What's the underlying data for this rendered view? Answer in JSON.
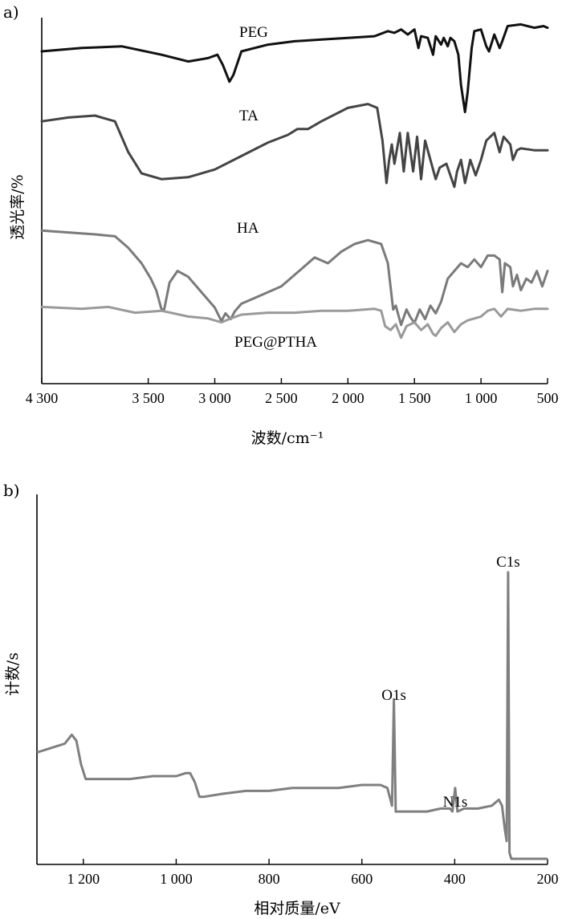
{
  "chart_data": [
    {
      "panel": "a)",
      "type": "line",
      "xlabel": "波数/cm⁻¹",
      "ylabel": "透光率/%",
      "xlim": [
        4300,
        500
      ],
      "x_reversed": true,
      "xticks": [
        4300,
        3500,
        3000,
        2500,
        2000,
        1500,
        1000,
        500
      ],
      "xtick_labels": [
        "4 300",
        "3 500",
        "3 000",
        "2 500",
        "2 000",
        "1 500",
        "1 000",
        "500"
      ],
      "grid": false,
      "series": [
        {
          "name": "PEG",
          "color": "#111111",
          "points": [
            [
              4300,
              0.8
            ],
            [
              4000,
              0.82
            ],
            [
              3700,
              0.83
            ],
            [
              3400,
              0.78
            ],
            [
              3200,
              0.74
            ],
            [
              3050,
              0.76
            ],
            [
              2980,
              0.78
            ],
            [
              2940,
              0.72
            ],
            [
              2890,
              0.62
            ],
            [
              2860,
              0.66
            ],
            [
              2800,
              0.8
            ],
            [
              2600,
              0.84
            ],
            [
              2400,
              0.86
            ],
            [
              2200,
              0.87
            ],
            [
              2000,
              0.88
            ],
            [
              1800,
              0.89
            ],
            [
              1700,
              0.92
            ],
            [
              1650,
              0.91
            ],
            [
              1600,
              0.93
            ],
            [
              1550,
              0.9
            ],
            [
              1500,
              0.93
            ],
            [
              1470,
              0.82
            ],
            [
              1450,
              0.89
            ],
            [
              1400,
              0.88
            ],
            [
              1360,
              0.78
            ],
            [
              1340,
              0.89
            ],
            [
              1300,
              0.84
            ],
            [
              1280,
              0.88
            ],
            [
              1250,
              0.83
            ],
            [
              1230,
              0.88
            ],
            [
              1200,
              0.86
            ],
            [
              1170,
              0.78
            ],
            [
              1150,
              0.6
            ],
            [
              1120,
              0.44
            ],
            [
              1100,
              0.56
            ],
            [
              1070,
              0.82
            ],
            [
              1050,
              0.92
            ],
            [
              1000,
              0.93
            ],
            [
              960,
              0.83
            ],
            [
              940,
              0.8
            ],
            [
              900,
              0.9
            ],
            [
              860,
              0.82
            ],
            [
              840,
              0.86
            ],
            [
              800,
              0.95
            ],
            [
              700,
              0.96
            ],
            [
              600,
              0.94
            ],
            [
              530,
              0.95
            ],
            [
              500,
              0.94
            ]
          ]
        },
        {
          "name": "TA",
          "color": "#444444",
          "points": [
            [
              4300,
              0.62
            ],
            [
              4100,
              0.64
            ],
            [
              3900,
              0.65
            ],
            [
              3750,
              0.62
            ],
            [
              3650,
              0.46
            ],
            [
              3550,
              0.35
            ],
            [
              3400,
              0.32
            ],
            [
              3200,
              0.33
            ],
            [
              3000,
              0.37
            ],
            [
              2800,
              0.44
            ],
            [
              2600,
              0.51
            ],
            [
              2450,
              0.55
            ],
            [
              2380,
              0.58
            ],
            [
              2300,
              0.58
            ],
            [
              2200,
              0.62
            ],
            [
              2000,
              0.69
            ],
            [
              1850,
              0.71
            ],
            [
              1780,
              0.69
            ],
            [
              1740,
              0.52
            ],
            [
              1710,
              0.3
            ],
            [
              1690,
              0.42
            ],
            [
              1670,
              0.5
            ],
            [
              1650,
              0.4
            ],
            [
              1610,
              0.56
            ],
            [
              1580,
              0.36
            ],
            [
              1550,
              0.56
            ],
            [
              1510,
              0.36
            ],
            [
              1480,
              0.54
            ],
            [
              1450,
              0.32
            ],
            [
              1420,
              0.52
            ],
            [
              1380,
              0.42
            ],
            [
              1340,
              0.32
            ],
            [
              1310,
              0.38
            ],
            [
              1260,
              0.4
            ],
            [
              1200,
              0.28
            ],
            [
              1180,
              0.36
            ],
            [
              1150,
              0.42
            ],
            [
              1120,
              0.3
            ],
            [
              1080,
              0.42
            ],
            [
              1040,
              0.34
            ],
            [
              1000,
              0.42
            ],
            [
              960,
              0.52
            ],
            [
              900,
              0.56
            ],
            [
              860,
              0.46
            ],
            [
              830,
              0.54
            ],
            [
              780,
              0.5
            ],
            [
              760,
              0.42
            ],
            [
              730,
              0.47
            ],
            [
              700,
              0.48
            ],
            [
              600,
              0.47
            ],
            [
              500,
              0.47
            ]
          ]
        },
        {
          "name": "HA",
          "color": "#7a7a7a",
          "points": [
            [
              4300,
              0.47
            ],
            [
              4100,
              0.46
            ],
            [
              3900,
              0.45
            ],
            [
              3750,
              0.44
            ],
            [
              3650,
              0.38
            ],
            [
              3550,
              0.3
            ],
            [
              3480,
              0.22
            ],
            [
              3440,
              0.16
            ],
            [
              3400,
              0.06
            ],
            [
              3380,
              0.06
            ],
            [
              3340,
              0.2
            ],
            [
              3280,
              0.26
            ],
            [
              3200,
              0.23
            ],
            [
              3100,
              0.15
            ],
            [
              3000,
              0.07
            ],
            [
              2950,
              0.0
            ],
            [
              2920,
              0.04
            ],
            [
              2880,
              0.01
            ],
            [
              2850,
              0.05
            ],
            [
              2800,
              0.09
            ],
            [
              2700,
              0.12
            ],
            [
              2500,
              0.18
            ],
            [
              2350,
              0.27
            ],
            [
              2250,
              0.33
            ],
            [
              2150,
              0.3
            ],
            [
              2050,
              0.36
            ],
            [
              1950,
              0.4
            ],
            [
              1850,
              0.42
            ],
            [
              1750,
              0.4
            ],
            [
              1700,
              0.3
            ],
            [
              1660,
              0.06
            ],
            [
              1640,
              0.08
            ],
            [
              1600,
              -0.02
            ],
            [
              1560,
              0.06
            ],
            [
              1530,
              0.02
            ],
            [
              1500,
              -0.01
            ],
            [
              1460,
              0.06
            ],
            [
              1420,
              0.01
            ],
            [
              1380,
              0.08
            ],
            [
              1340,
              0.04
            ],
            [
              1300,
              0.1
            ],
            [
              1250,
              0.22
            ],
            [
              1200,
              0.26
            ],
            [
              1150,
              0.3
            ],
            [
              1100,
              0.28
            ],
            [
              1050,
              0.32
            ],
            [
              1000,
              0.28
            ],
            [
              950,
              0.34
            ],
            [
              900,
              0.34
            ],
            [
              860,
              0.32
            ],
            [
              840,
              0.15
            ],
            [
              820,
              0.3
            ],
            [
              780,
              0.28
            ],
            [
              760,
              0.18
            ],
            [
              730,
              0.24
            ],
            [
              700,
              0.16
            ],
            [
              660,
              0.22
            ],
            [
              620,
              0.2
            ],
            [
              580,
              0.26
            ],
            [
              540,
              0.18
            ],
            [
              500,
              0.26
            ]
          ]
        },
        {
          "name": "PEG@PTHA",
          "color": "#9a9a9a",
          "points": [
            [
              4300,
              0.04
            ],
            [
              4000,
              0.03
            ],
            [
              3800,
              0.04
            ],
            [
              3600,
              0.01
            ],
            [
              3400,
              0.02
            ],
            [
              3200,
              -0.01
            ],
            [
              3050,
              -0.02
            ],
            [
              2950,
              -0.04
            ],
            [
              2880,
              -0.02
            ],
            [
              2800,
              0.0
            ],
            [
              2600,
              0.01
            ],
            [
              2400,
              0.01
            ],
            [
              2200,
              0.02
            ],
            [
              2000,
              0.02
            ],
            [
              1800,
              0.03
            ],
            [
              1750,
              0.02
            ],
            [
              1720,
              -0.06
            ],
            [
              1680,
              -0.08
            ],
            [
              1640,
              -0.05
            ],
            [
              1600,
              -0.12
            ],
            [
              1560,
              -0.06
            ],
            [
              1500,
              -0.04
            ],
            [
              1450,
              -0.08
            ],
            [
              1400,
              -0.05
            ],
            [
              1360,
              -0.1
            ],
            [
              1340,
              -0.11
            ],
            [
              1300,
              -0.07
            ],
            [
              1250,
              -0.04
            ],
            [
              1200,
              -0.09
            ],
            [
              1150,
              -0.05
            ],
            [
              1100,
              -0.03
            ],
            [
              1000,
              -0.01
            ],
            [
              950,
              0.02
            ],
            [
              900,
              0.03
            ],
            [
              850,
              -0.01
            ],
            [
              800,
              0.03
            ],
            [
              700,
              0.02
            ],
            [
              600,
              0.03
            ],
            [
              500,
              0.03
            ]
          ]
        }
      ]
    },
    {
      "panel": "b)",
      "type": "line",
      "xlabel": "相对质量/eV",
      "ylabel": "计数/s",
      "xlim": [
        1300,
        200
      ],
      "x_reversed": true,
      "xticks": [
        1200,
        1000,
        800,
        600,
        400,
        200
      ],
      "xtick_labels": [
        "1 200",
        "1 000",
        "800",
        "600",
        "400",
        "200"
      ],
      "grid": false,
      "annotations": [
        {
          "text": "C1s",
          "x": 285
        },
        {
          "text": "O1s",
          "x": 531
        },
        {
          "text": "N1s",
          "x": 399
        }
      ],
      "series": [
        {
          "name": "",
          "color": "#7f7f7f",
          "points": [
            [
              1300,
              0.36
            ],
            [
              1280,
              0.37
            ],
            [
              1260,
              0.38
            ],
            [
              1240,
              0.39
            ],
            [
              1225,
              0.42
            ],
            [
              1215,
              0.4
            ],
            [
              1205,
              0.32
            ],
            [
              1195,
              0.27
            ],
            [
              1150,
              0.27
            ],
            [
              1100,
              0.27
            ],
            [
              1050,
              0.28
            ],
            [
              1000,
              0.28
            ],
            [
              980,
              0.29
            ],
            [
              970,
              0.29
            ],
            [
              960,
              0.26
            ],
            [
              950,
              0.21
            ],
            [
              940,
              0.21
            ],
            [
              900,
              0.22
            ],
            [
              850,
              0.23
            ],
            [
              800,
              0.23
            ],
            [
              750,
              0.24
            ],
            [
              700,
              0.24
            ],
            [
              650,
              0.24
            ],
            [
              600,
              0.25
            ],
            [
              560,
              0.25
            ],
            [
              545,
              0.24
            ],
            [
              535,
              0.18
            ],
            [
              531,
              0.54
            ],
            [
              527,
              0.16
            ],
            [
              520,
              0.16
            ],
            [
              500,
              0.16
            ],
            [
              460,
              0.16
            ],
            [
              430,
              0.17
            ],
            [
              410,
              0.17
            ],
            [
              405,
              0.16
            ],
            [
              399,
              0.24
            ],
            [
              394,
              0.16
            ],
            [
              380,
              0.17
            ],
            [
              350,
              0.17
            ],
            [
              320,
              0.18
            ],
            [
              305,
              0.2
            ],
            [
              298,
              0.18
            ],
            [
              292,
              0.1
            ],
            [
              288,
              0.06
            ],
            [
              285,
              0.97
            ],
            [
              282,
              0.02
            ],
            [
              278,
              0.0
            ],
            [
              250,
              0.0
            ],
            [
              200,
              0.0
            ]
          ]
        }
      ]
    }
  ]
}
